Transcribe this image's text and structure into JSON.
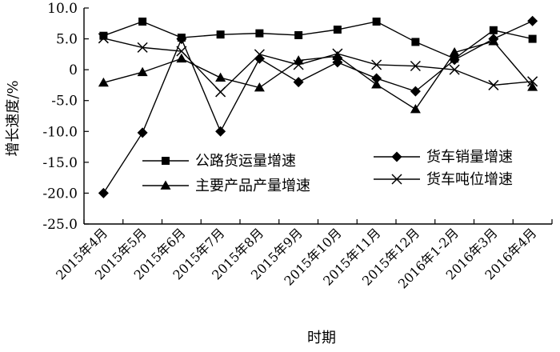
{
  "chart_data": {
    "type": "line",
    "title": "",
    "xlabel": "时期",
    "ylabel": "增长速度/%",
    "ylim": [
      -25,
      10
    ],
    "yticks": [
      "10.0",
      "5.0",
      "0",
      "-5.0",
      "-10.0",
      "-15.0",
      "-20.0",
      "-25.0"
    ],
    "ytick_values": [
      10,
      5,
      0,
      -5,
      -10,
      -15,
      -20,
      -25
    ],
    "grid": false,
    "legend_position": "center",
    "categories": [
      "2015年4月",
      "2015年5月",
      "2015年6月",
      "2015年7月",
      "2015年8月",
      "2015年9月",
      "2015年10月",
      "2015年11月",
      "2015年12月",
      "2016年1-2月",
      "2016年3月",
      "2016年4月"
    ],
    "series": [
      {
        "name": "公路货运量增速",
        "marker": "square",
        "values": [
          5.5,
          7.8,
          5.2,
          5.7,
          5.9,
          5.6,
          6.5,
          7.8,
          4.5,
          1.8,
          6.4,
          5.0
        ]
      },
      {
        "name": "货车销量增速",
        "marker": "diamond",
        "values": [
          -20.0,
          -10.2,
          5.0,
          -10.0,
          1.8,
          -2.0,
          1.2,
          -1.4,
          -3.5,
          1.6,
          5.0,
          7.9
        ]
      },
      {
        "name": "主要产品产量增速",
        "marker": "triangle",
        "values": [
          -2.1,
          -0.4,
          1.8,
          -1.3,
          -2.9,
          1.5,
          2.2,
          -2.4,
          -6.4,
          2.8,
          4.6,
          -2.8
        ]
      },
      {
        "name": "货车吨位增速",
        "marker": "x",
        "values": [
          5.1,
          3.6,
          3.0,
          -3.6,
          2.5,
          0.8,
          2.6,
          0.8,
          0.6,
          0.0,
          -2.5,
          -1.9
        ]
      }
    ]
  }
}
